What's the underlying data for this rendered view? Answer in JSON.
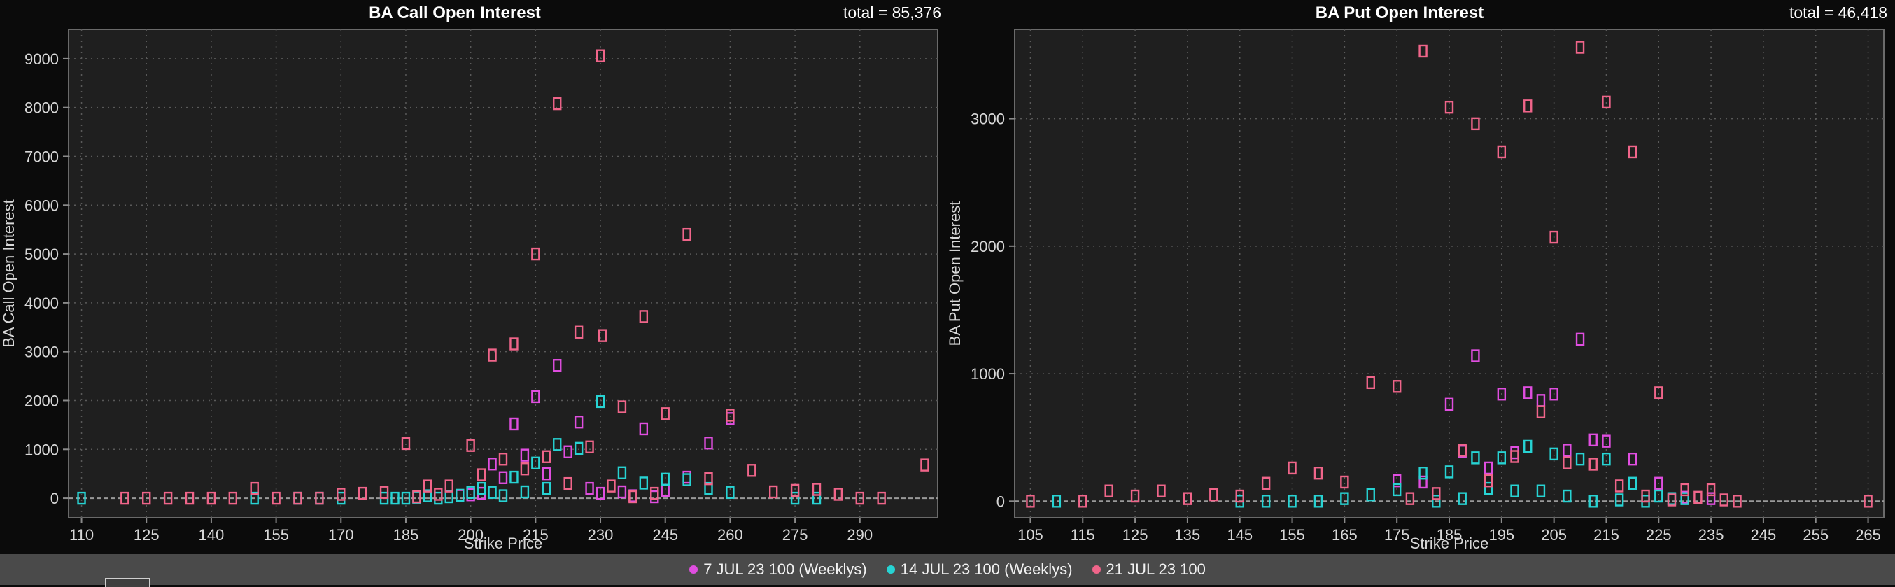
{
  "colors": {
    "background": "#0b0b0b",
    "plot_bg": "#1f1f1f",
    "grid": "#5a5a5a",
    "text": "#d8d8d8",
    "title": "#ffffff",
    "series": [
      "#e04ee0",
      "#27d3d3",
      "#f0658a"
    ]
  },
  "legend": {
    "items": [
      {
        "label": "7 JUL 23 100 (Weeklys)",
        "color": "#e04ee0"
      },
      {
        "label": "14 JUL 23 100 (Weeklys)",
        "color": "#27d3d3"
      },
      {
        "label": "21 JUL 23 100",
        "color": "#f0658a"
      }
    ]
  },
  "chart_data": [
    {
      "type": "scatter",
      "title": "BA Call Open Interest",
      "total_label": "total = 85,376",
      "xlabel": "Strike Price",
      "ylabel": "BA Call Open Interest",
      "xlim": [
        107,
        308
      ],
      "ylim": [
        -400,
        9600
      ],
      "xticks": [
        110,
        125,
        140,
        155,
        170,
        185,
        200,
        215,
        230,
        245,
        260,
        275,
        290
      ],
      "yticks": [
        0,
        1000,
        2000,
        3000,
        4000,
        5000,
        6000,
        7000,
        8000,
        9000
      ],
      "grid": true,
      "series": [
        {
          "name": "7 JUL 23 100 (Weeklys)",
          "color": "#e04ee0",
          "points": [
            [
              197.5,
              50
            ],
            [
              200,
              70
            ],
            [
              202.5,
              100
            ],
            [
              205,
              700
            ],
            [
              207.5,
              420
            ],
            [
              210,
              1520
            ],
            [
              212.5,
              880
            ],
            [
              215,
              2080
            ],
            [
              217.5,
              500
            ],
            [
              220,
              2720
            ],
            [
              222.5,
              950
            ],
            [
              225,
              1560
            ],
            [
              227.5,
              200
            ],
            [
              230,
              100
            ],
            [
              235,
              130
            ],
            [
              237.5,
              50
            ],
            [
              240,
              1420
            ],
            [
              242.5,
              30
            ],
            [
              245,
              160
            ],
            [
              250,
              430
            ],
            [
              255,
              1130
            ],
            [
              260,
              1630
            ]
          ]
        },
        {
          "name": "14 JUL 23 100 (Weeklys)",
          "color": "#27d3d3",
          "points": [
            [
              110,
              0
            ],
            [
              150,
              0
            ],
            [
              160,
              0
            ],
            [
              165,
              0
            ],
            [
              170,
              0
            ],
            [
              180,
              0
            ],
            [
              182.5,
              0
            ],
            [
              185,
              0
            ],
            [
              187.5,
              20
            ],
            [
              190,
              50
            ],
            [
              192.5,
              0
            ],
            [
              195,
              30
            ],
            [
              197.5,
              60
            ],
            [
              200,
              120
            ],
            [
              202.5,
              200
            ],
            [
              205,
              120
            ],
            [
              207.5,
              50
            ],
            [
              210,
              430
            ],
            [
              212.5,
              130
            ],
            [
              215,
              720
            ],
            [
              217.5,
              200
            ],
            [
              220,
              1100
            ],
            [
              225,
              1020
            ],
            [
              230,
              1980
            ],
            [
              235,
              520
            ],
            [
              240,
              310
            ],
            [
              245,
              390
            ],
            [
              250,
              380
            ],
            [
              255,
              200
            ],
            [
              260,
              120
            ],
            [
              275,
              0
            ],
            [
              280,
              0
            ]
          ]
        },
        {
          "name": "21 JUL 23 100",
          "color": "#f0658a",
          "points": [
            [
              120,
              0
            ],
            [
              125,
              0
            ],
            [
              130,
              0
            ],
            [
              135,
              0
            ],
            [
              140,
              0
            ],
            [
              145,
              0
            ],
            [
              150,
              200
            ],
            [
              155,
              0
            ],
            [
              160,
              0
            ],
            [
              165,
              0
            ],
            [
              170,
              80
            ],
            [
              175,
              100
            ],
            [
              180,
              120
            ],
            [
              185,
              1120
            ],
            [
              187.5,
              30
            ],
            [
              190,
              250
            ],
            [
              192.5,
              80
            ],
            [
              195,
              250
            ],
            [
              200,
              1080
            ],
            [
              202.5,
              480
            ],
            [
              205,
              2930
            ],
            [
              207.5,
              800
            ],
            [
              210,
              3160
            ],
            [
              212.5,
              600
            ],
            [
              215,
              5000
            ],
            [
              217.5,
              850
            ],
            [
              220,
              8080
            ],
            [
              222.5,
              300
            ],
            [
              225,
              3400
            ],
            [
              227.5,
              1050
            ],
            [
              230,
              9060
            ],
            [
              230.5,
              3330
            ],
            [
              232.5,
              250
            ],
            [
              235,
              1870
            ],
            [
              237.5,
              30
            ],
            [
              240,
              3720
            ],
            [
              242.5,
              100
            ],
            [
              245,
              1730
            ],
            [
              250,
              5400
            ],
            [
              255,
              400
            ],
            [
              260,
              1700
            ],
            [
              265,
              570
            ],
            [
              270,
              130
            ],
            [
              275,
              160
            ],
            [
              280,
              180
            ],
            [
              285,
              80
            ],
            [
              290,
              0
            ],
            [
              295,
              0
            ],
            [
              305,
              680
            ]
          ]
        }
      ]
    },
    {
      "type": "scatter",
      "title": "BA Put Open Interest",
      "total_label": "total = 46,418",
      "xlabel": "Strike Price",
      "ylabel": "BA Put Open Interest",
      "xlim": [
        102,
        268
      ],
      "ylim": [
        -130,
        3700
      ],
      "xticks": [
        105,
        115,
        125,
        135,
        145,
        155,
        165,
        175,
        185,
        195,
        205,
        215,
        225,
        235,
        245,
        255,
        265
      ],
      "yticks": [
        0,
        1000,
        2000,
        3000
      ],
      "grid": true,
      "series": [
        {
          "name": "7 JUL 23 100 (Weeklys)",
          "color": "#e04ee0",
          "points": [
            [
              175,
              160
            ],
            [
              180,
              150
            ],
            [
              185,
              760
            ],
            [
              187.5,
              390
            ],
            [
              190,
              1140
            ],
            [
              192.5,
              260
            ],
            [
              195,
              840
            ],
            [
              197.5,
              380
            ],
            [
              200,
              850
            ],
            [
              202.5,
              790
            ],
            [
              205,
              840
            ],
            [
              207.5,
              400
            ],
            [
              210,
              1270
            ],
            [
              212.5,
              480
            ],
            [
              215,
              470
            ],
            [
              220,
              330
            ],
            [
              225,
              140
            ],
            [
              230,
              30
            ],
            [
              235,
              20
            ]
          ]
        },
        {
          "name": "14 JUL 23 100 (Weeklys)",
          "color": "#27d3d3",
          "points": [
            [
              110,
              0
            ],
            [
              145,
              0
            ],
            [
              150,
              0
            ],
            [
              155,
              0
            ],
            [
              160,
              0
            ],
            [
              165,
              20
            ],
            [
              170,
              50
            ],
            [
              175,
              90
            ],
            [
              180,
              220
            ],
            [
              182.5,
              0
            ],
            [
              185,
              230
            ],
            [
              187.5,
              20
            ],
            [
              190,
              340
            ],
            [
              192.5,
              100
            ],
            [
              195,
              340
            ],
            [
              197.5,
              80
            ],
            [
              200,
              430
            ],
            [
              202.5,
              80
            ],
            [
              205,
              370
            ],
            [
              207.5,
              40
            ],
            [
              210,
              330
            ],
            [
              212.5,
              0
            ],
            [
              215,
              330
            ],
            [
              217.5,
              10
            ],
            [
              220,
              140
            ],
            [
              222.5,
              0
            ],
            [
              225,
              40
            ],
            [
              227.5,
              20
            ],
            [
              230,
              20
            ]
          ]
        },
        {
          "name": "21 JUL 23 100",
          "color": "#f0658a",
          "points": [
            [
              105,
              0
            ],
            [
              115,
              0
            ],
            [
              120,
              80
            ],
            [
              125,
              40
            ],
            [
              130,
              80
            ],
            [
              135,
              20
            ],
            [
              140,
              50
            ],
            [
              145,
              40
            ],
            [
              150,
              140
            ],
            [
              155,
              260
            ],
            [
              160,
              220
            ],
            [
              165,
              150
            ],
            [
              170,
              930
            ],
            [
              175,
              900
            ],
            [
              177.5,
              20
            ],
            [
              180,
              3530
            ],
            [
              182.5,
              60
            ],
            [
              185,
              3090
            ],
            [
              187.5,
              400
            ],
            [
              190,
              2960
            ],
            [
              192.5,
              160
            ],
            [
              195,
              2740
            ],
            [
              197.5,
              350
            ],
            [
              200,
              3100
            ],
            [
              202.5,
              700
            ],
            [
              205,
              2070
            ],
            [
              207.5,
              300
            ],
            [
              210,
              3560
            ],
            [
              212.5,
              290
            ],
            [
              215,
              3130
            ],
            [
              217.5,
              120
            ],
            [
              220,
              2740
            ],
            [
              222.5,
              40
            ],
            [
              225,
              850
            ],
            [
              227.5,
              10
            ],
            [
              230,
              90
            ],
            [
              232.5,
              30
            ],
            [
              235,
              90
            ],
            [
              237.5,
              10
            ],
            [
              240,
              0
            ],
            [
              265,
              0
            ]
          ]
        }
      ]
    }
  ]
}
